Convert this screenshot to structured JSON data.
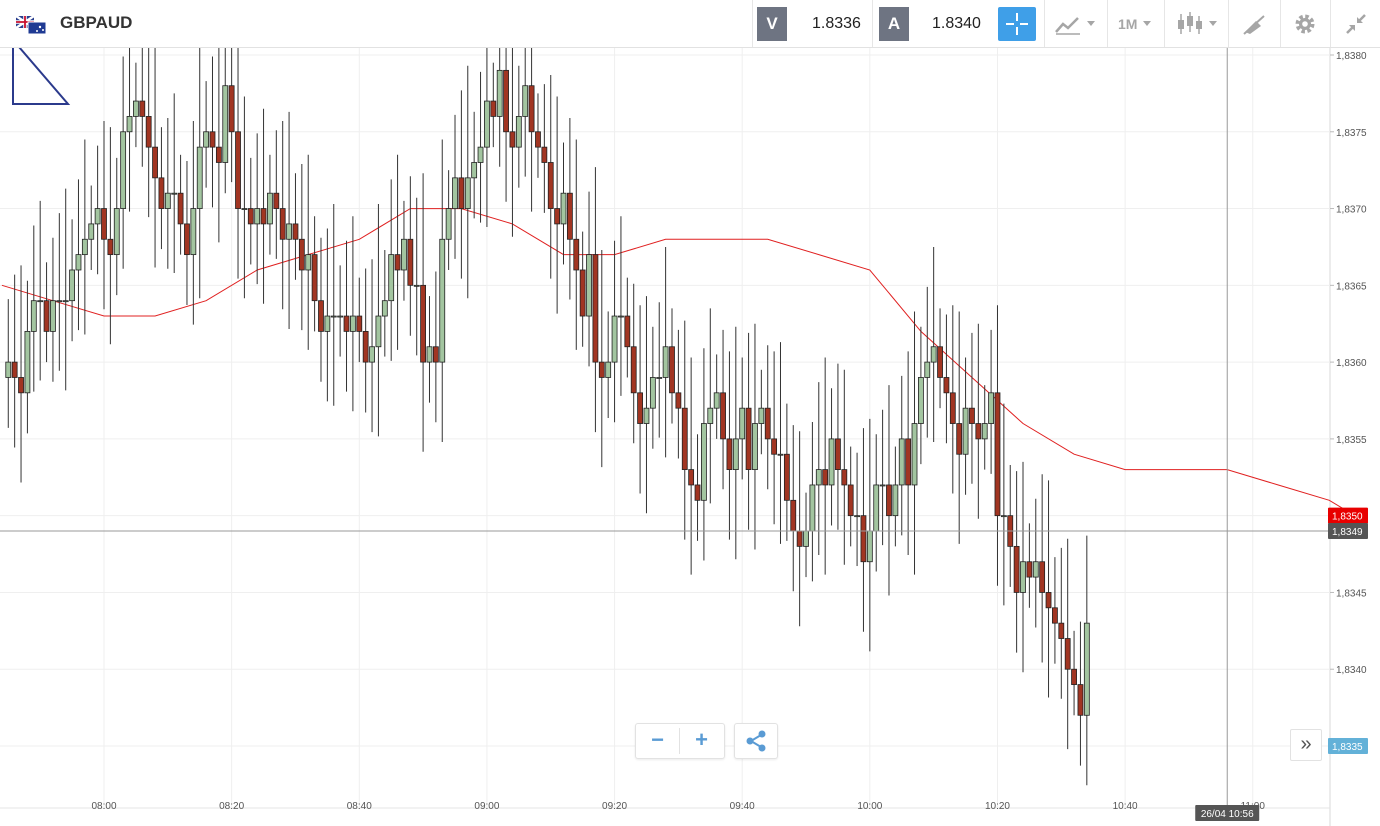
{
  "toolbar": {
    "symbol": "GBPAUD",
    "sell_label": "V",
    "sell_value": "1.8336",
    "buy_label": "A",
    "buy_value": "1.8340",
    "timeframe": "1M",
    "icons": [
      "flag-gb-au-icon",
      "crosshair-icon",
      "line-chart-icon",
      "candlestick-icon",
      "draw-tools-icon",
      "gear-icon",
      "collapse-icon"
    ]
  },
  "zoom": {
    "minus": "−",
    "plus": "+"
  },
  "scroll_button": "»",
  "colors": {
    "bull": "#a3c5a0",
    "bear": "#a13522",
    "ma": "#e02020",
    "current_price": "#e80000",
    "crosshair_label": "#555555",
    "last_label": "#63b1d8",
    "accent": "#3f9fe8"
  },
  "chart_data": {
    "type": "candlestick",
    "title": "GBPAUD",
    "ylim": [
      1.8333,
      1.8381
    ],
    "y_ticks": [
      "1,8380",
      "1,8375",
      "1,8370",
      "1,8365",
      "1,8360",
      "1,8355",
      "1,8350",
      "1,8345",
      "1,8340",
      "1,8335"
    ],
    "y_tick_values": [
      1.838,
      1.8375,
      1.837,
      1.8365,
      1.836,
      1.8355,
      1.835,
      1.8345,
      1.834,
      1.8335
    ],
    "x_range": [
      "07:44",
      "11:14"
    ],
    "x_ticks": [
      "08:00",
      "08:20",
      "08:40",
      "09:00",
      "09:20",
      "09:40",
      "10:00",
      "10:20",
      "10:40",
      "11:00"
    ],
    "x_tick_minutes": [
      480,
      500,
      520,
      540,
      560,
      580,
      600,
      620,
      640,
      660
    ],
    "grid": true,
    "current_price": "1,8350",
    "current_price_value": 1.835,
    "crosshair_price": "1,8349",
    "crosshair_price_value": 1.8349,
    "crosshair_time": "26/04 10:56",
    "crosshair_minute": 656,
    "last_price": "1,8335",
    "last_price_value": 1.8335,
    "candles_start_minute": 464,
    "closes": [
      1.8359,
      1.836,
      1.8359,
      1.8358,
      1.8362,
      1.8364,
      1.8364,
      1.8362,
      1.8364,
      1.8364,
      1.8364,
      1.8366,
      1.8367,
      1.8368,
      1.8369,
      1.837,
      1.8368,
      1.8367,
      1.837,
      1.8375,
      1.8376,
      1.8377,
      1.8376,
      1.8374,
      1.8372,
      1.837,
      1.8371,
      1.8371,
      1.8369,
      1.8367,
      1.837,
      1.8374,
      1.8375,
      1.8374,
      1.8373,
      1.8378,
      1.8375,
      1.837,
      1.837,
      1.8369,
      1.837,
      1.8369,
      1.8371,
      1.837,
      1.8368,
      1.8369,
      1.8368,
      1.8366,
      1.8367,
      1.8364,
      1.8362,
      1.8363,
      1.8363,
      1.8363,
      1.8362,
      1.8363,
      1.8362,
      1.836,
      1.8361,
      1.8363,
      1.8364,
      1.8367,
      1.8366,
      1.8368,
      1.8365,
      1.8365,
      1.836,
      1.8361,
      1.836,
      1.8368,
      1.837,
      1.8372,
      1.837,
      1.8372,
      1.8373,
      1.8374,
      1.8377,
      1.8376,
      1.8379,
      1.8375,
      1.8374,
      1.8376,
      1.8378,
      1.8375,
      1.8374,
      1.8373,
      1.837,
      1.8369,
      1.8371,
      1.8368,
      1.8366,
      1.8363,
      1.8367,
      1.836,
      1.8359,
      1.836,
      1.8363,
      1.8363,
      1.8361,
      1.8358,
      1.8356,
      1.8357,
      1.8359,
      1.8359,
      1.8361,
      1.8358,
      1.8357,
      1.8353,
      1.8352,
      1.8351,
      1.8356,
      1.8357,
      1.8358,
      1.8355,
      1.8353,
      1.8355,
      1.8357,
      1.8353,
      1.8356,
      1.8357,
      1.8355,
      1.8354,
      1.8354,
      1.8351,
      1.8349,
      1.8348,
      1.8349,
      1.8352,
      1.8353,
      1.8352,
      1.8355,
      1.8353,
      1.8352,
      1.835,
      1.835,
      1.8347,
      1.8349,
      1.8352,
      1.8352,
      1.835,
      1.8352,
      1.8355,
      1.8352,
      1.8356,
      1.8359,
      1.836,
      1.8361,
      1.8359,
      1.8358,
      1.8356,
      1.8354,
      1.8357,
      1.8356,
      1.8355,
      1.8356,
      1.8358,
      1.835,
      1.835,
      1.8348,
      1.8345,
      1.8347,
      1.8346,
      1.8347,
      1.8345,
      1.8344,
      1.8343,
      1.8342,
      1.834,
      1.8339,
      1.8337,
      1.8343
    ],
    "ma": [
      [
        464,
        1.8365
      ],
      [
        472,
        1.8364
      ],
      [
        480,
        1.8363
      ],
      [
        488,
        1.8363
      ],
      [
        496,
        1.8364
      ],
      [
        504,
        1.8366
      ],
      [
        512,
        1.8367
      ],
      [
        520,
        1.8368
      ],
      [
        528,
        1.837
      ],
      [
        536,
        1.837
      ],
      [
        544,
        1.8369
      ],
      [
        552,
        1.8367
      ],
      [
        560,
        1.8367
      ],
      [
        568,
        1.8368
      ],
      [
        576,
        1.8368
      ],
      [
        584,
        1.8368
      ],
      [
        592,
        1.8367
      ],
      [
        600,
        1.8366
      ],
      [
        608,
        1.8362
      ],
      [
        616,
        1.8359
      ],
      [
        624,
        1.8356
      ],
      [
        632,
        1.8354
      ],
      [
        640,
        1.8353
      ],
      [
        648,
        1.8353
      ],
      [
        656,
        1.8353
      ],
      [
        664,
        1.8352
      ],
      [
        672,
        1.8351
      ],
      [
        676,
        1.835
      ]
    ]
  }
}
